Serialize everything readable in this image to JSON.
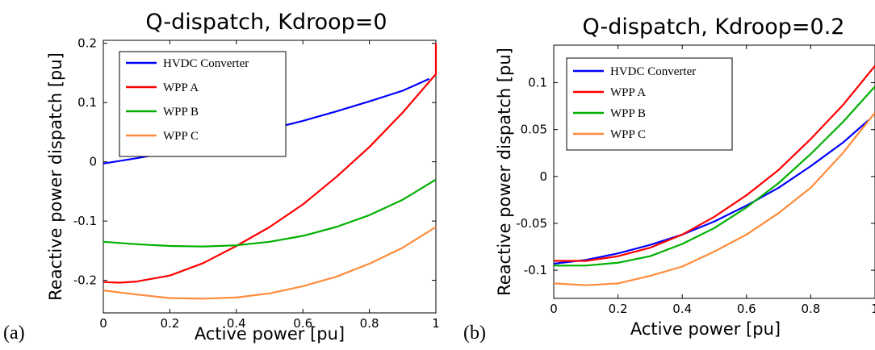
{
  "chart_data": [
    {
      "type": "line",
      "panel_label": "(a)",
      "title": "Q-dispatch, Kdroop=0",
      "xlabel": "Active power [pu]",
      "ylabel": "Reactive power dispatch [pu]",
      "xlim": [
        0,
        1
      ],
      "ylim": [
        -0.255,
        0.205
      ],
      "xticks": [
        0,
        0.2,
        0.4,
        0.6,
        0.8,
        1
      ],
      "xtick_labels": [
        "0",
        "0.2",
        "0.4",
        "0.6",
        "0.8",
        "1"
      ],
      "yticks": [
        -0.2,
        -0.1,
        0,
        0.1,
        0.2
      ],
      "ytick_labels": [
        "-0.2",
        "-0.1",
        "0",
        "0.1",
        "0.2"
      ],
      "grid": false,
      "legend_position": "top-left",
      "series": [
        {
          "name": "HVDC Converter",
          "color": "#0000ff",
          "x": [
            0,
            0.1,
            0.2,
            0.3,
            0.4,
            0.5,
            0.6,
            0.7,
            0.8,
            0.9,
            0.98
          ],
          "y": [
            -0.003,
            0.006,
            0.016,
            0.028,
            0.041,
            0.055,
            0.069,
            0.085,
            0.102,
            0.12,
            0.14
          ]
        },
        {
          "name": "WPP A",
          "color": "#ff0000",
          "x": [
            0,
            0.05,
            0.1,
            0.2,
            0.3,
            0.4,
            0.5,
            0.6,
            0.7,
            0.8,
            0.9,
            1.0,
            1.0
          ],
          "y": [
            -0.203,
            -0.204,
            -0.202,
            -0.192,
            -0.171,
            -0.142,
            -0.11,
            -0.072,
            -0.026,
            0.025,
            0.083,
            0.148,
            0.2
          ]
        },
        {
          "name": "WPP B",
          "color": "#00b000",
          "x": [
            0,
            0.1,
            0.2,
            0.3,
            0.4,
            0.5,
            0.6,
            0.7,
            0.8,
            0.9,
            1.0
          ],
          "y": [
            -0.135,
            -0.139,
            -0.142,
            -0.143,
            -0.141,
            -0.135,
            -0.125,
            -0.11,
            -0.09,
            -0.064,
            -0.03
          ]
        },
        {
          "name": "WPP C",
          "color": "#ff8c3c",
          "x": [
            0,
            0.1,
            0.2,
            0.3,
            0.4,
            0.5,
            0.6,
            0.7,
            0.8,
            0.9,
            1.0
          ],
          "y": [
            -0.217,
            -0.224,
            -0.23,
            -0.231,
            -0.229,
            -0.222,
            -0.21,
            -0.194,
            -0.172,
            -0.145,
            -0.11
          ]
        }
      ]
    },
    {
      "type": "line",
      "panel_label": "(b)",
      "title": "Q-dispatch, Kdroop=0.2",
      "xlabel": "Active power [pu]",
      "ylabel": "Reactive power dispatch [pu]",
      "xlim": [
        0,
        1
      ],
      "ylim": [
        -0.13,
        0.14
      ],
      "xticks": [
        0,
        0.2,
        0.4,
        0.6,
        0.8,
        1
      ],
      "xtick_labels": [
        "0",
        "0.2",
        "0.4",
        "0.6",
        "0.8",
        "1"
      ],
      "yticks": [
        -0.1,
        -0.05,
        0,
        0.05,
        0.1
      ],
      "ytick_labels": [
        "-0.1",
        "-0.05",
        "0",
        "0.05",
        "0.1"
      ],
      "grid": false,
      "legend_position": "top-left",
      "series": [
        {
          "name": "HVDC Converter",
          "color": "#0000ff",
          "x": [
            0,
            0.1,
            0.2,
            0.3,
            0.4,
            0.5,
            0.6,
            0.7,
            0.8,
            0.9,
            0.98
          ],
          "y": [
            -0.093,
            -0.089,
            -0.082,
            -0.073,
            -0.062,
            -0.048,
            -0.031,
            -0.012,
            0.011,
            0.036,
            0.06
          ]
        },
        {
          "name": "WPP A",
          "color": "#ff0000",
          "x": [
            0,
            0.1,
            0.2,
            0.3,
            0.4,
            0.5,
            0.6,
            0.7,
            0.8,
            0.9,
            1.0
          ],
          "y": [
            -0.09,
            -0.09,
            -0.085,
            -0.076,
            -0.062,
            -0.043,
            -0.02,
            0.007,
            0.04,
            0.076,
            0.118
          ]
        },
        {
          "name": "WPP B",
          "color": "#00b000",
          "x": [
            0,
            0.1,
            0.2,
            0.3,
            0.4,
            0.5,
            0.6,
            0.7,
            0.8,
            0.9,
            1.0
          ],
          "y": [
            -0.095,
            -0.095,
            -0.092,
            -0.085,
            -0.072,
            -0.055,
            -0.033,
            -0.007,
            0.024,
            0.058,
            0.096
          ]
        },
        {
          "name": "WPP C",
          "color": "#ff8c3c",
          "x": [
            0,
            0.1,
            0.2,
            0.3,
            0.4,
            0.5,
            0.6,
            0.7,
            0.8,
            0.9,
            1.0
          ],
          "y": [
            -0.114,
            -0.116,
            -0.114,
            -0.106,
            -0.096,
            -0.08,
            -0.062,
            -0.039,
            -0.012,
            0.025,
            0.068
          ]
        }
      ]
    }
  ]
}
